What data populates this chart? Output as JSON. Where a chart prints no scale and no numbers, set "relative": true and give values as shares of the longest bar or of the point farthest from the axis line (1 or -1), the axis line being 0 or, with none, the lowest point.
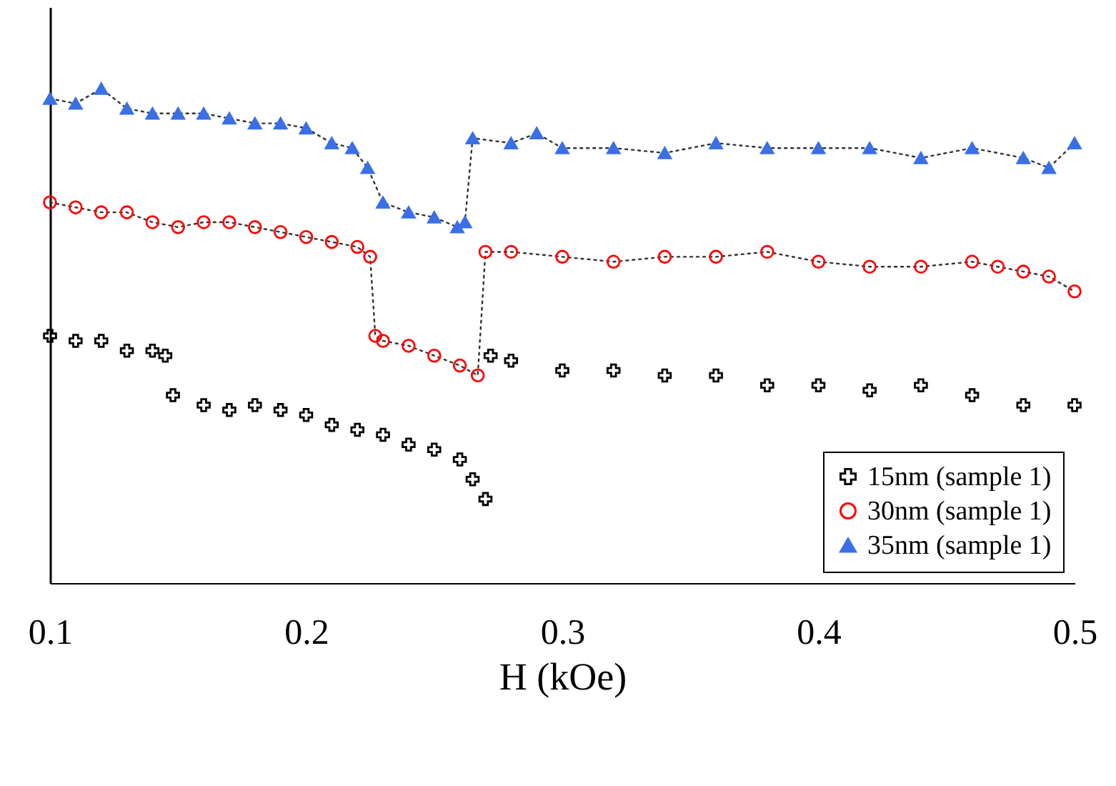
{
  "chart_data": {
    "type": "line",
    "xlabel": "H (kOe)",
    "relative": true,
    "xlim": [
      0.1,
      0.5
    ],
    "xticks": [
      0.1,
      0.2,
      0.3,
      0.4,
      0.5
    ],
    "legend": "bottom right",
    "grid": false,
    "series": [
      {
        "name": "15nm (sample 1)",
        "type": "scatter",
        "marker": "cross",
        "color": "#000000",
        "x": [
          0.1,
          0.11,
          0.12,
          0.13,
          0.14,
          0.145,
          0.148,
          0.16,
          0.17,
          0.18,
          0.19,
          0.2,
          0.21,
          0.22,
          0.23,
          0.24,
          0.25,
          0.26,
          0.265,
          0.27,
          0.272,
          0.28,
          0.3,
          0.32,
          0.34,
          0.36,
          0.38,
          0.4,
          0.42,
          0.44,
          0.46,
          0.48,
          0.5
        ],
        "values": [
          0.5,
          0.49,
          0.49,
          0.47,
          0.47,
          0.46,
          0.38,
          0.36,
          0.35,
          0.36,
          0.35,
          0.34,
          0.32,
          0.31,
          0.3,
          0.28,
          0.27,
          0.25,
          0.21,
          0.17,
          0.46,
          0.45,
          0.43,
          0.43,
          0.42,
          0.42,
          0.4,
          0.4,
          0.39,
          0.4,
          0.38,
          0.36,
          0.36
        ]
      },
      {
        "name": "30nm (sample 1)",
        "marker": "circle",
        "line_style": "dotted",
        "color": "#ff0000",
        "x": [
          0.1,
          0.11,
          0.12,
          0.13,
          0.14,
          0.15,
          0.16,
          0.17,
          0.18,
          0.19,
          0.2,
          0.21,
          0.22,
          0.225,
          0.227,
          0.23,
          0.24,
          0.25,
          0.26,
          0.267,
          0.27,
          0.28,
          0.3,
          0.32,
          0.34,
          0.36,
          0.38,
          0.4,
          0.42,
          0.44,
          0.46,
          0.47,
          0.48,
          0.49,
          0.5
        ],
        "values": [
          0.77,
          0.76,
          0.75,
          0.75,
          0.73,
          0.72,
          0.73,
          0.73,
          0.72,
          0.71,
          0.7,
          0.69,
          0.68,
          0.66,
          0.5,
          0.49,
          0.48,
          0.46,
          0.44,
          0.42,
          0.67,
          0.67,
          0.66,
          0.65,
          0.66,
          0.66,
          0.67,
          0.65,
          0.64,
          0.64,
          0.65,
          0.64,
          0.63,
          0.62,
          0.59
        ]
      },
      {
        "name": "35nm (sample 1)",
        "marker": "triangle",
        "line_style": "dotted",
        "color": "#3b6fe8",
        "x": [
          0.1,
          0.11,
          0.12,
          0.13,
          0.14,
          0.15,
          0.16,
          0.17,
          0.18,
          0.19,
          0.2,
          0.21,
          0.218,
          0.224,
          0.23,
          0.24,
          0.25,
          0.259,
          0.262,
          0.265,
          0.28,
          0.29,
          0.3,
          0.32,
          0.34,
          0.36,
          0.38,
          0.4,
          0.42,
          0.44,
          0.46,
          0.48,
          0.49,
          0.5
        ],
        "values": [
          0.98,
          0.97,
          1,
          0.96,
          0.95,
          0.95,
          0.95,
          0.94,
          0.93,
          0.93,
          0.92,
          0.89,
          0.88,
          0.84,
          0.77,
          0.75,
          0.74,
          0.72,
          0.73,
          0.9,
          0.89,
          0.91,
          0.88,
          0.88,
          0.87,
          0.89,
          0.88,
          0.88,
          0.88,
          0.86,
          0.88,
          0.86,
          0.84,
          0.89
        ]
      }
    ]
  }
}
